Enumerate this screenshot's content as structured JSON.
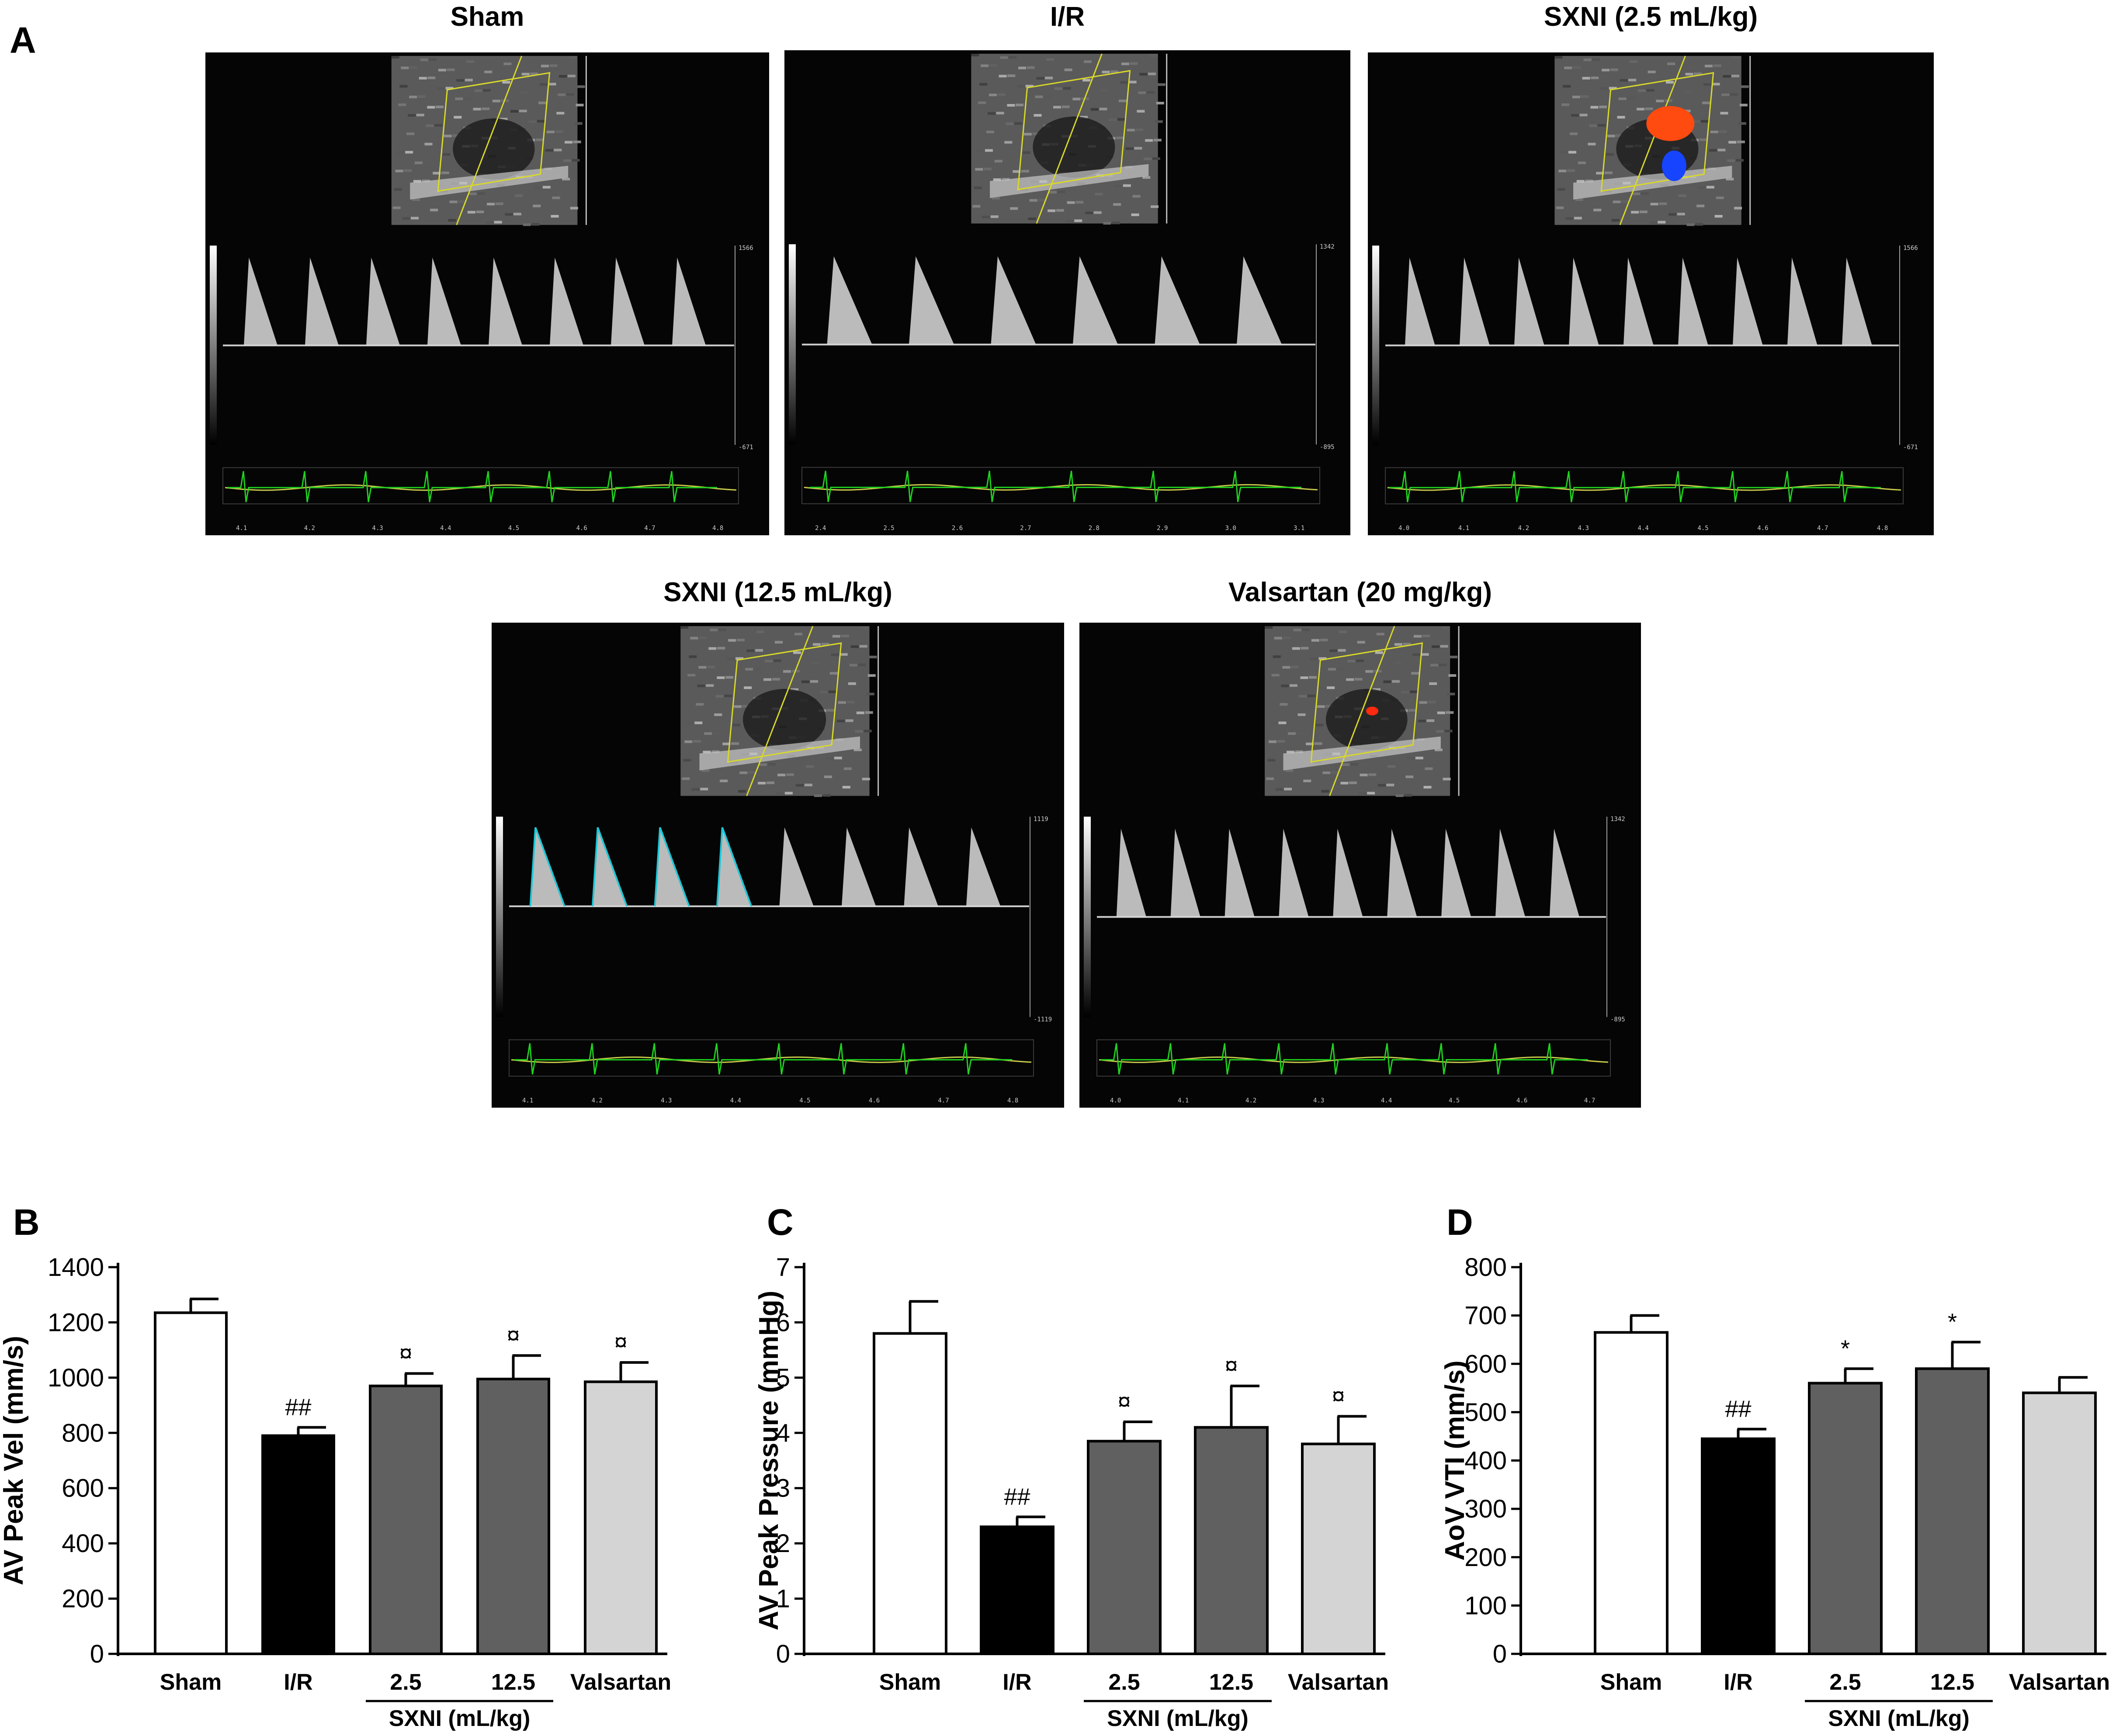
{
  "panel_letters": {
    "a": "A",
    "b": "B",
    "c": "C",
    "d": "D"
  },
  "ultrasound": [
    {
      "title": "Sham",
      "peaks": 8,
      "scale_top": "1566",
      "scale_bottom": "-671",
      "tint": false,
      "color_flow": false,
      "times": [
        "4.1",
        "4.2",
        "4.3",
        "4.4",
        "4.5",
        "4.6",
        "4.7",
        "4.8"
      ]
    },
    {
      "title": "I/R",
      "peaks": 6,
      "scale_top": "1342",
      "scale_bottom": "-895",
      "tint": false,
      "color_flow": false,
      "times": [
        "2.4",
        "2.5",
        "2.6",
        "2.7",
        "2.8",
        "2.9",
        "3.0",
        "3.1"
      ]
    },
    {
      "title": "SXNI (2.5 mL/kg)",
      "peaks": 9,
      "scale_top": "1566",
      "scale_bottom": "-671",
      "tint": false,
      "color_flow": true,
      "times": [
        "4.0",
        "4.1",
        "4.2",
        "4.3",
        "4.4",
        "4.5",
        "4.6",
        "4.7",
        "4.8"
      ]
    },
    {
      "title": "SXNI (12.5 mL/kg)",
      "peaks": 8,
      "scale_top": "1119",
      "scale_bottom": "-1119",
      "tint": true,
      "color_flow": false,
      "times": [
        "4.1",
        "4.2",
        "4.3",
        "4.4",
        "4.5",
        "4.6",
        "4.7",
        "4.8"
      ]
    },
    {
      "title": "Valsartan (20 mg/kg)",
      "peaks": 9,
      "scale_top": "1342",
      "scale_bottom": "-895",
      "tint": false,
      "color_flow": "red",
      "times": [
        "4.0",
        "4.1",
        "4.2",
        "4.3",
        "4.4",
        "4.5",
        "4.6",
        "4.7"
      ]
    }
  ],
  "colors": {
    "sham": "#ffffff",
    "ir": "#000000",
    "sxni": "#606060",
    "valsartan": "#d4d4d4",
    "ecg": "#1fd21f"
  },
  "chart_data": [
    {
      "type": "bar",
      "panel": "B",
      "ylabel": "AV Peak Vel (mm/s)",
      "ylim": [
        0,
        1400
      ],
      "yticks": [
        0,
        200,
        400,
        600,
        800,
        1000,
        1200,
        1400
      ],
      "categories": [
        "Sham",
        "I/R",
        "2.5",
        "12.5",
        "Valsartan"
      ],
      "group_label": "SXNI (mL/kg)",
      "values": [
        1235,
        790,
        970,
        995,
        985
      ],
      "errors": [
        50,
        30,
        45,
        85,
        70
      ],
      "annotations": [
        "",
        "##",
        "¤",
        "¤",
        "¤"
      ]
    },
    {
      "type": "bar",
      "panel": "C",
      "ylabel": "AV Peak Pressure (mmHg)",
      "ylim": [
        0,
        7
      ],
      "yticks": [
        0,
        1,
        2,
        3,
        4,
        5,
        6,
        7
      ],
      "categories": [
        "Sham",
        "I/R",
        "2.5",
        "12.5",
        "Valsartan"
      ],
      "group_label": "SXNI (mL/kg)",
      "values": [
        5.8,
        2.3,
        3.85,
        4.1,
        3.8
      ],
      "errors": [
        0.58,
        0.18,
        0.35,
        0.75,
        0.5
      ],
      "annotations": [
        "",
        "##",
        "¤",
        "¤",
        "¤"
      ]
    },
    {
      "type": "bar",
      "panel": "D",
      "ylabel": "AoV VTI (mm/s)",
      "ylim": [
        0,
        800
      ],
      "yticks": [
        0,
        100,
        200,
        300,
        400,
        500,
        600,
        700,
        800
      ],
      "categories": [
        "Sham",
        "I/R",
        "2.5",
        "12.5",
        "Valsartan"
      ],
      "group_label": "SXNI (mL/kg)",
      "values": [
        665,
        445,
        560,
        590,
        540
      ],
      "errors": [
        35,
        20,
        30,
        55,
        32
      ],
      "annotations": [
        "",
        "##",
        "*",
        "*",
        ""
      ]
    }
  ]
}
